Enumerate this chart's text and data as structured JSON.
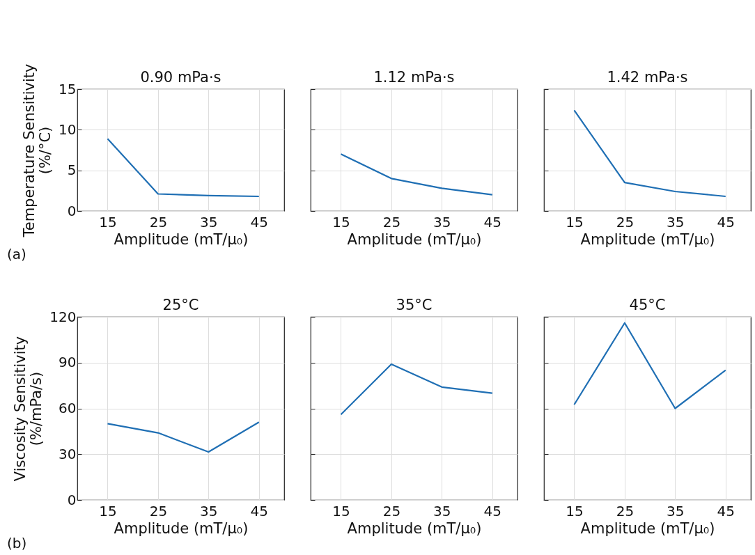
{
  "chart_data": [
    {
      "type": "line",
      "title": "0.90 mPa·s",
      "xlabel": "Amplitude (mT/μ₀)",
      "ylabel": "Temperature Sensitivity (%/°C)",
      "x": [
        15,
        25,
        35,
        45
      ],
      "series": [
        {
          "color": "#1f6fb4",
          "values": [
            8.9,
            2.1,
            1.9,
            1.8
          ]
        }
      ],
      "xlim": [
        9,
        50
      ],
      "xticks": [
        15,
        25,
        35,
        45
      ],
      "ylim": [
        0,
        15
      ],
      "yticks": [
        0,
        5,
        10,
        15
      ],
      "grid": true,
      "annotations": [
        "(a)"
      ]
    },
    {
      "type": "line",
      "title": "1.12 mPa·s",
      "xlabel": "Amplitude (mT/μ₀)",
      "x": [
        15,
        25,
        35,
        45
      ],
      "series": [
        {
          "color": "#1f6fb4",
          "values": [
            7.0,
            4.0,
            2.8,
            2.0
          ]
        }
      ],
      "xlim": [
        9,
        50
      ],
      "xticks": [
        15,
        25,
        35,
        45
      ],
      "ylim": [
        0,
        15
      ],
      "yticks": [
        0,
        5,
        10,
        15
      ],
      "grid": true,
      "tick_labels": "x"
    },
    {
      "type": "line",
      "title": "1.42 mPa·s",
      "xlabel": "Amplitude (mT/μ₀)",
      "x": [
        15,
        25,
        35,
        45
      ],
      "series": [
        {
          "color": "#1f6fb4",
          "values": [
            12.4,
            3.5,
            2.4,
            1.8
          ]
        }
      ],
      "xlim": [
        9,
        50
      ],
      "xticks": [
        15,
        25,
        35,
        45
      ],
      "ylim": [
        0,
        15
      ],
      "yticks": [
        0,
        5,
        10,
        15
      ],
      "grid": true,
      "tick_labels": "x"
    },
    {
      "type": "line",
      "title": "25°C",
      "xlabel": "Amplitude (mT/μ₀)",
      "ylabel": "Viscosity Sensitivity (%/mPa/s)",
      "x": [
        15,
        25,
        35,
        45
      ],
      "series": [
        {
          "color": "#1f6fb4",
          "values": [
            50,
            44,
            31.5,
            51
          ]
        }
      ],
      "xlim": [
        9,
        50
      ],
      "xticks": [
        15,
        25,
        35,
        45
      ],
      "ylim": [
        0,
        120
      ],
      "yticks": [
        0,
        30,
        60,
        90,
        120
      ],
      "grid": true,
      "annotations": [
        "(b)"
      ]
    },
    {
      "type": "line",
      "title": "35°C",
      "xlabel": "Amplitude (mT/μ₀)",
      "x": [
        15,
        25,
        35,
        45
      ],
      "series": [
        {
          "color": "#1f6fb4",
          "values": [
            56,
            89,
            74,
            70
          ]
        }
      ],
      "xlim": [
        9,
        50
      ],
      "xticks": [
        15,
        25,
        35,
        45
      ],
      "ylim": [
        0,
        120
      ],
      "yticks": [
        0,
        30,
        60,
        90,
        120
      ],
      "grid": true,
      "tick_labels": "x"
    },
    {
      "type": "line",
      "title": "45°C",
      "xlabel": "Amplitude (mT/μ₀)",
      "x": [
        15,
        25,
        35,
        45
      ],
      "series": [
        {
          "color": "#1f6fb4",
          "values": [
            62.5,
            116,
            60,
            85
          ]
        }
      ],
      "xlim": [
        9,
        50
      ],
      "xticks": [
        15,
        25,
        35,
        45
      ],
      "ylim": [
        0,
        120
      ],
      "yticks": [
        0,
        30,
        60,
        90,
        120
      ],
      "grid": true,
      "tick_labels": "x"
    }
  ]
}
